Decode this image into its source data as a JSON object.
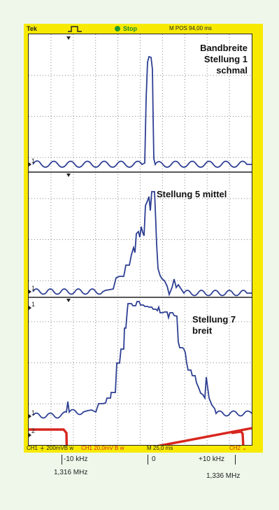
{
  "status": {
    "brand": "Tek",
    "run_state": "Stop",
    "horizontal_position": "M POS 94,00 ms"
  },
  "labels": {
    "top": "Bandbreite\nStellung 1 schmal",
    "middle": "Stellung 5 mittel",
    "bottom": "Stellung 7\nbreit"
  },
  "readout": {
    "ch1": "CH1 ⏚ 200mVB w",
    "math": "CH1  20,0mV B w",
    "timebase": "M 25,0 ms",
    "ch2": "CH2 ⌄"
  },
  "frequency_axis": {
    "left_offset": "-10 kHz",
    "center": "0",
    "right_offset": "+10 kHz",
    "left_freq": "1,316 MHz",
    "right_freq": "1,336 MHz"
  },
  "colors": {
    "trace": "#2d3f93",
    "ramp": "#d7261e",
    "bezel": "#f7ea00",
    "stop_indicator": "#1f9b2f"
  }
}
